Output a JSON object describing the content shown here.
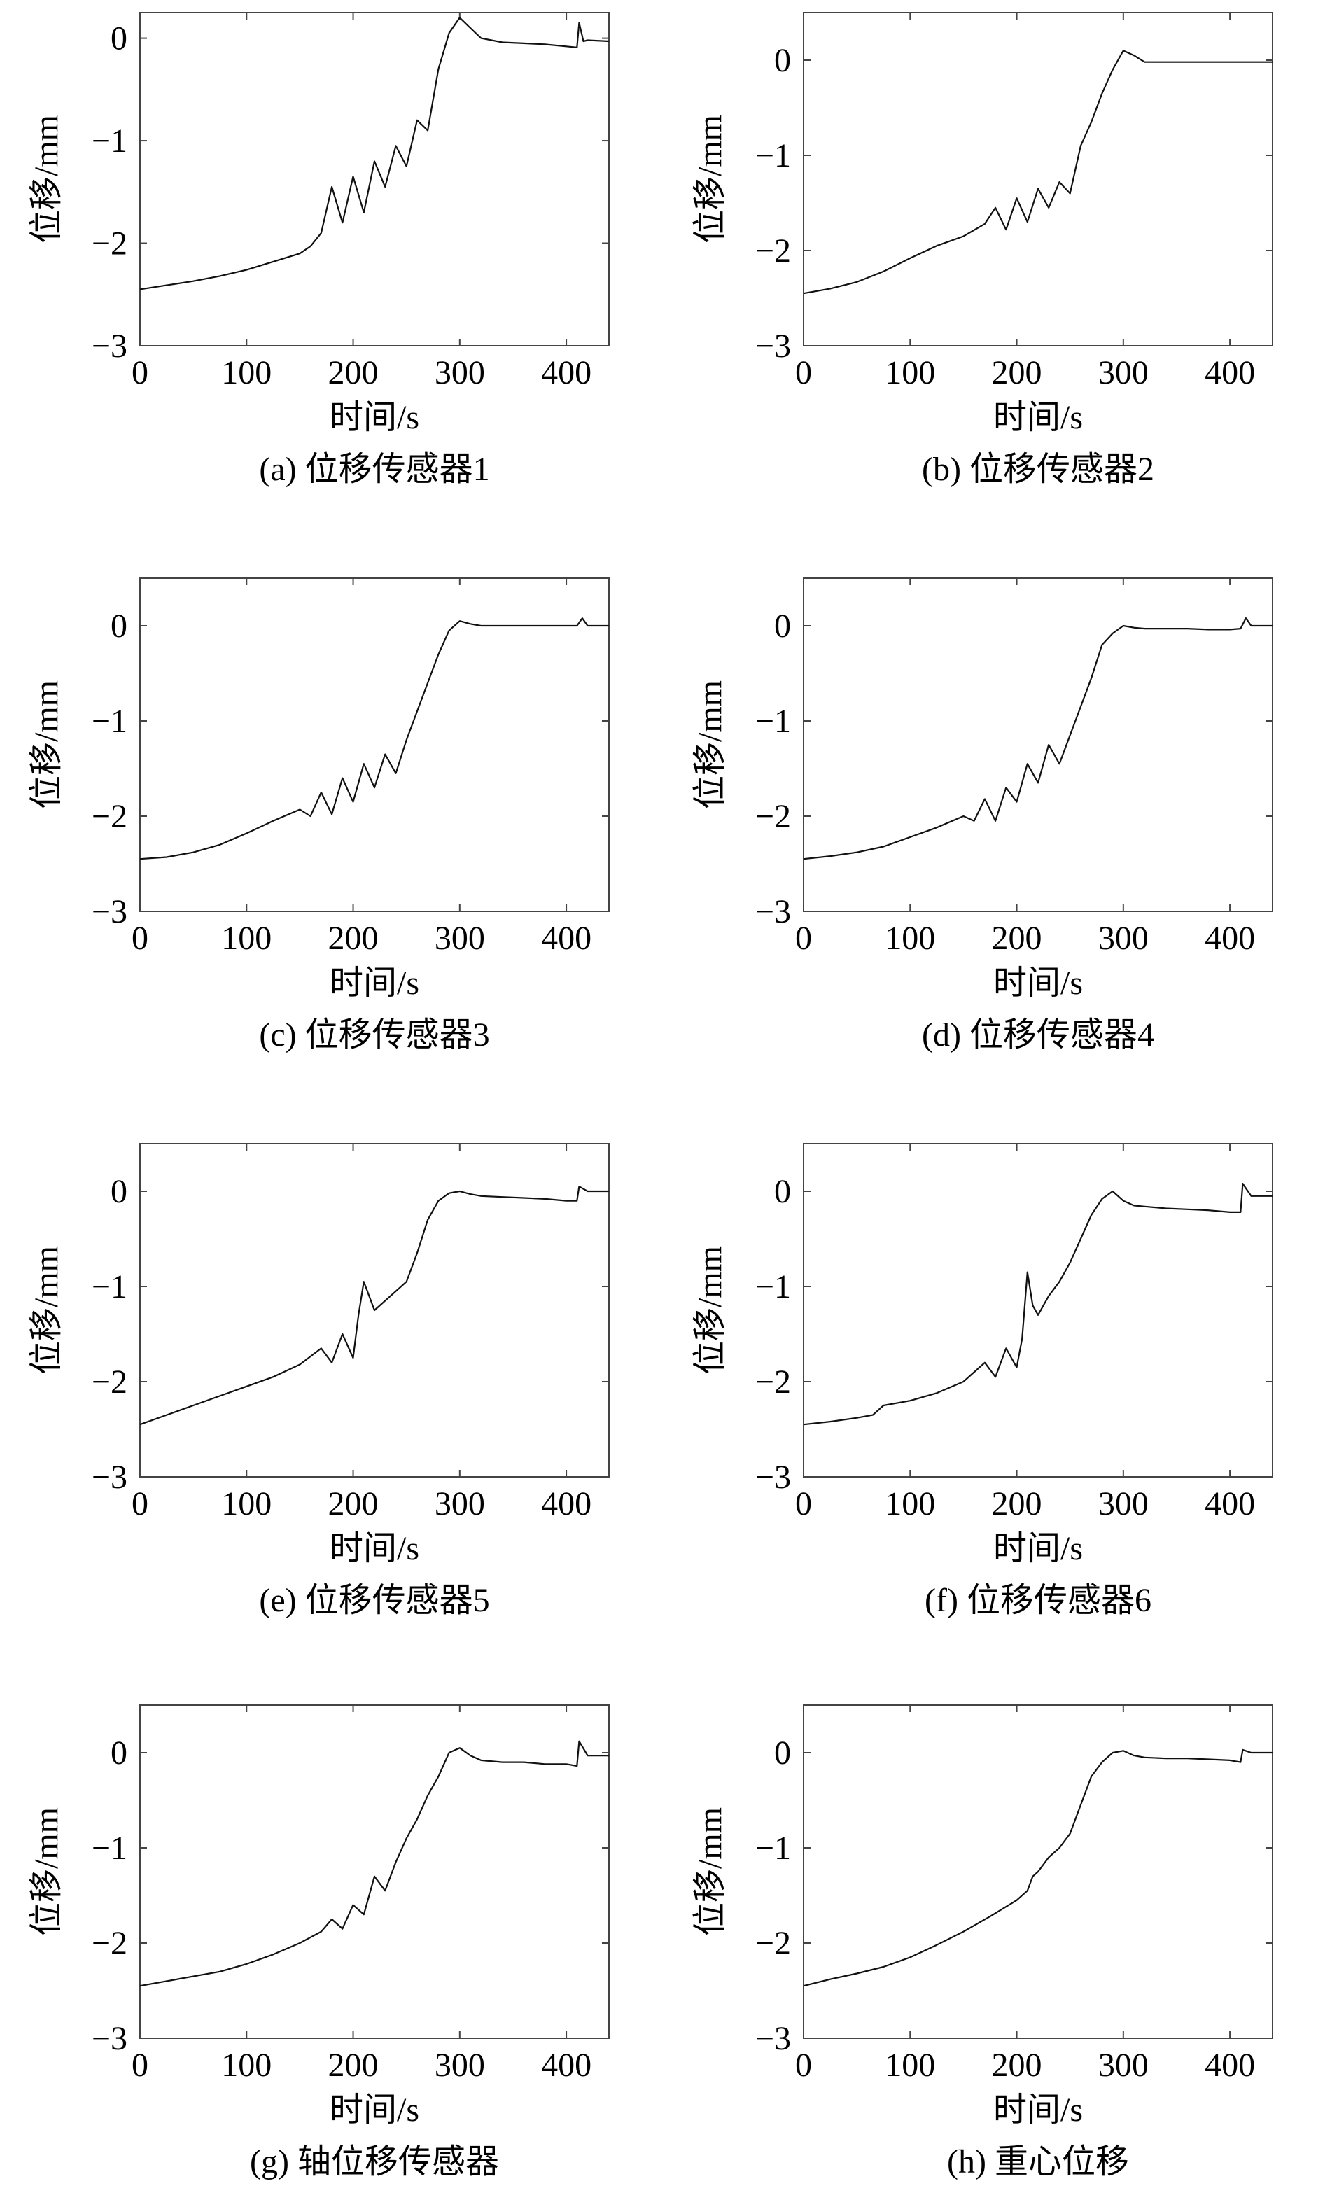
{
  "figure": {
    "panels": [
      {
        "id": "a",
        "caption": "(a) 位移传感器1",
        "ylabel": "位移/mm",
        "xlabel": "时间/s"
      },
      {
        "id": "b",
        "caption": "(b) 位移传感器2",
        "ylabel": "位移/mm",
        "xlabel": "时间/s"
      },
      {
        "id": "c",
        "caption": "(c) 位移传感器3",
        "ylabel": "位移/mm",
        "xlabel": "时间/s"
      },
      {
        "id": "d",
        "caption": "(d) 位移传感器4",
        "ylabel": "位移/mm",
        "xlabel": "时间/s"
      },
      {
        "id": "e",
        "caption": "(e) 位移传感器5",
        "ylabel": "位移/mm",
        "xlabel": "时间/s"
      },
      {
        "id": "f",
        "caption": "(f) 位移传感器6",
        "ylabel": "位移/mm",
        "xlabel": "时间/s"
      },
      {
        "id": "g",
        "caption": "(g) 轴位移传感器",
        "ylabel": "位移/mm",
        "xlabel": "时间/s"
      },
      {
        "id": "h",
        "caption": "(h) 重心位移",
        "ylabel": "位移/mm",
        "xlabel": "时间/s"
      }
    ]
  },
  "chart_data": [
    {
      "type": "line",
      "title": "(a) 位移传感器1",
      "xlabel": "时间/s",
      "ylabel": "位移/mm",
      "xlim": [
        0,
        440
      ],
      "ylim": [
        -3,
        0.25
      ],
      "xticks": [
        "0",
        "100",
        "200",
        "300",
        "400"
      ],
      "yticks": [
        "0",
        "−1",
        "−2",
        "−3"
      ],
      "series": [
        {
          "name": "位移传感器1",
          "x": [
            0,
            25,
            50,
            75,
            100,
            125,
            150,
            160,
            170,
            180,
            190,
            200,
            210,
            220,
            230,
            240,
            250,
            260,
            270,
            280,
            290,
            300,
            310,
            320,
            340,
            360,
            380,
            400,
            410,
            412,
            416,
            420,
            440
          ],
          "y": [
            -2.45,
            -2.41,
            -2.37,
            -2.32,
            -2.26,
            -2.18,
            -2.1,
            -2.03,
            -1.9,
            -1.45,
            -1.8,
            -1.35,
            -1.7,
            -1.2,
            -1.45,
            -1.05,
            -1.25,
            -0.8,
            -0.9,
            -0.3,
            0.05,
            0.2,
            0.1,
            0.0,
            -0.04,
            -0.05,
            -0.06,
            -0.08,
            -0.09,
            0.15,
            -0.03,
            -0.02,
            -0.03
          ]
        }
      ]
    },
    {
      "type": "line",
      "title": "(b) 位移传感器2",
      "xlabel": "时间/s",
      "ylabel": "位移/mm",
      "xlim": [
        0,
        440
      ],
      "ylim": [
        -3,
        0.5
      ],
      "xticks": [
        "0",
        "100",
        "200",
        "300",
        "400"
      ],
      "yticks": [
        "0",
        "−1",
        "−2",
        "−3"
      ],
      "series": [
        {
          "name": "位移传感器2",
          "x": [
            0,
            25,
            50,
            75,
            100,
            125,
            150,
            170,
            180,
            190,
            200,
            210,
            220,
            230,
            240,
            250,
            260,
            270,
            280,
            290,
            300,
            310,
            320,
            340,
            360,
            380,
            400,
            410,
            420,
            440
          ],
          "y": [
            -2.45,
            -2.4,
            -2.33,
            -2.22,
            -2.08,
            -1.95,
            -1.85,
            -1.72,
            -1.55,
            -1.78,
            -1.45,
            -1.7,
            -1.35,
            -1.55,
            -1.28,
            -1.4,
            -0.9,
            -0.65,
            -0.35,
            -0.1,
            0.1,
            0.05,
            -0.02,
            -0.02,
            -0.02,
            -0.02,
            -0.02,
            -0.02,
            -0.02,
            -0.02
          ]
        }
      ]
    },
    {
      "type": "line",
      "title": "(c) 位移传感器3",
      "xlabel": "时间/s",
      "ylabel": "位移/mm",
      "xlim": [
        0,
        440
      ],
      "ylim": [
        -3,
        0.5
      ],
      "xticks": [
        "0",
        "100",
        "200",
        "300",
        "400"
      ],
      "yticks": [
        "0",
        "−1",
        "−2",
        "−3"
      ],
      "series": [
        {
          "name": "位移传感器3",
          "x": [
            0,
            25,
            50,
            75,
            100,
            125,
            150,
            160,
            170,
            180,
            190,
            200,
            210,
            220,
            230,
            240,
            250,
            260,
            270,
            280,
            290,
            300,
            310,
            320,
            340,
            360,
            380,
            400,
            410,
            415,
            420,
            440
          ],
          "y": [
            -2.45,
            -2.43,
            -2.38,
            -2.3,
            -2.18,
            -2.05,
            -1.93,
            -2.0,
            -1.75,
            -1.98,
            -1.6,
            -1.85,
            -1.45,
            -1.7,
            -1.35,
            -1.55,
            -1.2,
            -0.9,
            -0.6,
            -0.3,
            -0.05,
            0.05,
            0.02,
            0.0,
            0.0,
            0.0,
            0.0,
            0.0,
            0.0,
            0.08,
            0.0,
            0.0
          ]
        }
      ]
    },
    {
      "type": "line",
      "title": "(d) 位移传感器4",
      "xlabel": "时间/s",
      "ylabel": "位移/mm",
      "xlim": [
        0,
        440
      ],
      "ylim": [
        -3,
        0.5
      ],
      "xticks": [
        "0",
        "100",
        "200",
        "300",
        "400"
      ],
      "yticks": [
        "0",
        "−1",
        "−2",
        "−3"
      ],
      "series": [
        {
          "name": "位移传感器4",
          "x": [
            0,
            25,
            50,
            75,
            100,
            125,
            150,
            160,
            170,
            180,
            190,
            200,
            210,
            220,
            230,
            240,
            250,
            260,
            270,
            280,
            290,
            300,
            310,
            320,
            340,
            360,
            380,
            400,
            410,
            415,
            420,
            440
          ],
          "y": [
            -2.45,
            -2.42,
            -2.38,
            -2.32,
            -2.22,
            -2.12,
            -2.0,
            -2.05,
            -1.82,
            -2.05,
            -1.7,
            -1.85,
            -1.45,
            -1.65,
            -1.25,
            -1.45,
            -1.15,
            -0.85,
            -0.55,
            -0.2,
            -0.08,
            0.0,
            -0.02,
            -0.03,
            -0.03,
            -0.03,
            -0.04,
            -0.04,
            -0.03,
            0.08,
            0.0,
            0.0
          ]
        }
      ]
    },
    {
      "type": "line",
      "title": "(e) 位移传感器5",
      "xlabel": "时间/s",
      "ylabel": "位移/mm",
      "xlim": [
        0,
        440
      ],
      "ylim": [
        -3,
        0.5
      ],
      "xticks": [
        "0",
        "100",
        "200",
        "300",
        "400"
      ],
      "yticks": [
        "0",
        "−1",
        "−2",
        "−3"
      ],
      "series": [
        {
          "name": "位移传感器5",
          "x": [
            0,
            25,
            50,
            75,
            100,
            125,
            150,
            170,
            180,
            190,
            200,
            205,
            210,
            220,
            230,
            240,
            250,
            260,
            270,
            280,
            290,
            300,
            310,
            320,
            340,
            360,
            380,
            400,
            410,
            412,
            420,
            440
          ],
          "y": [
            -2.45,
            -2.35,
            -2.25,
            -2.15,
            -2.05,
            -1.95,
            -1.82,
            -1.65,
            -1.8,
            -1.5,
            -1.75,
            -1.3,
            -0.95,
            -1.25,
            -1.15,
            -1.05,
            -0.95,
            -0.65,
            -0.3,
            -0.1,
            -0.02,
            0.0,
            -0.03,
            -0.05,
            -0.06,
            -0.07,
            -0.08,
            -0.1,
            -0.1,
            0.05,
            0.0,
            0.0
          ]
        }
      ]
    },
    {
      "type": "line",
      "title": "(f) 位移传感器6",
      "xlabel": "时间/s",
      "ylabel": "位移/mm",
      "xlim": [
        0,
        440
      ],
      "ylim": [
        -3,
        0.5
      ],
      "xticks": [
        "0",
        "100",
        "200",
        "300",
        "400"
      ],
      "yticks": [
        "0",
        "−1",
        "−2",
        "−3"
      ],
      "series": [
        {
          "name": "位移传感器6",
          "x": [
            0,
            25,
            50,
            65,
            75,
            100,
            125,
            150,
            170,
            180,
            190,
            200,
            205,
            210,
            215,
            220,
            230,
            240,
            250,
            260,
            270,
            280,
            290,
            300,
            310,
            320,
            340,
            360,
            380,
            400,
            410,
            412,
            420,
            440
          ],
          "y": [
            -2.45,
            -2.42,
            -2.38,
            -2.35,
            -2.25,
            -2.2,
            -2.12,
            -2.0,
            -1.8,
            -1.95,
            -1.65,
            -1.85,
            -1.55,
            -0.85,
            -1.2,
            -1.3,
            -1.1,
            -0.95,
            -0.75,
            -0.5,
            -0.25,
            -0.08,
            0.0,
            -0.1,
            -0.15,
            -0.16,
            -0.18,
            -0.19,
            -0.2,
            -0.22,
            -0.22,
            0.08,
            -0.05,
            -0.05
          ]
        }
      ]
    },
    {
      "type": "line",
      "title": "(g) 轴位移传感器",
      "xlabel": "时间/s",
      "ylabel": "位移/mm",
      "xlim": [
        0,
        440
      ],
      "ylim": [
        -3,
        0.5
      ],
      "xticks": [
        "0",
        "100",
        "200",
        "300",
        "400"
      ],
      "yticks": [
        "0",
        "−1",
        "−2",
        "−3"
      ],
      "series": [
        {
          "name": "轴位移传感器",
          "x": [
            0,
            25,
            50,
            75,
            100,
            125,
            150,
            170,
            180,
            190,
            200,
            210,
            220,
            230,
            240,
            250,
            260,
            270,
            280,
            290,
            300,
            310,
            320,
            340,
            360,
            380,
            400,
            410,
            412,
            420,
            440
          ],
          "y": [
            -2.45,
            -2.4,
            -2.35,
            -2.3,
            -2.22,
            -2.12,
            -2.0,
            -1.88,
            -1.75,
            -1.85,
            -1.6,
            -1.7,
            -1.3,
            -1.45,
            -1.15,
            -0.9,
            -0.7,
            -0.45,
            -0.25,
            0.0,
            0.05,
            -0.03,
            -0.08,
            -0.1,
            -0.1,
            -0.12,
            -0.12,
            -0.14,
            0.12,
            -0.03,
            -0.03
          ]
        }
      ]
    },
    {
      "type": "line",
      "title": "(h) 重心位移",
      "xlabel": "时间/s",
      "ylabel": "位移/mm",
      "xlim": [
        0,
        440
      ],
      "ylim": [
        -3,
        0.5
      ],
      "xticks": [
        "0",
        "100",
        "200",
        "300",
        "400"
      ],
      "yticks": [
        "0",
        "−1",
        "−2",
        "−3"
      ],
      "series": [
        {
          "name": "重心位移",
          "x": [
            0,
            25,
            50,
            75,
            100,
            125,
            150,
            175,
            200,
            210,
            215,
            220,
            230,
            240,
            250,
            260,
            265,
            270,
            280,
            290,
            300,
            310,
            320,
            340,
            360,
            380,
            400,
            410,
            412,
            420,
            440
          ],
          "y": [
            -2.45,
            -2.38,
            -2.32,
            -2.25,
            -2.15,
            -2.02,
            -1.88,
            -1.72,
            -1.55,
            -1.45,
            -1.3,
            -1.25,
            -1.1,
            -1.0,
            -0.85,
            -0.55,
            -0.4,
            -0.25,
            -0.1,
            0.0,
            0.02,
            -0.03,
            -0.05,
            -0.06,
            -0.06,
            -0.07,
            -0.08,
            -0.1,
            0.03,
            0.0,
            0.0
          ]
        }
      ]
    }
  ]
}
